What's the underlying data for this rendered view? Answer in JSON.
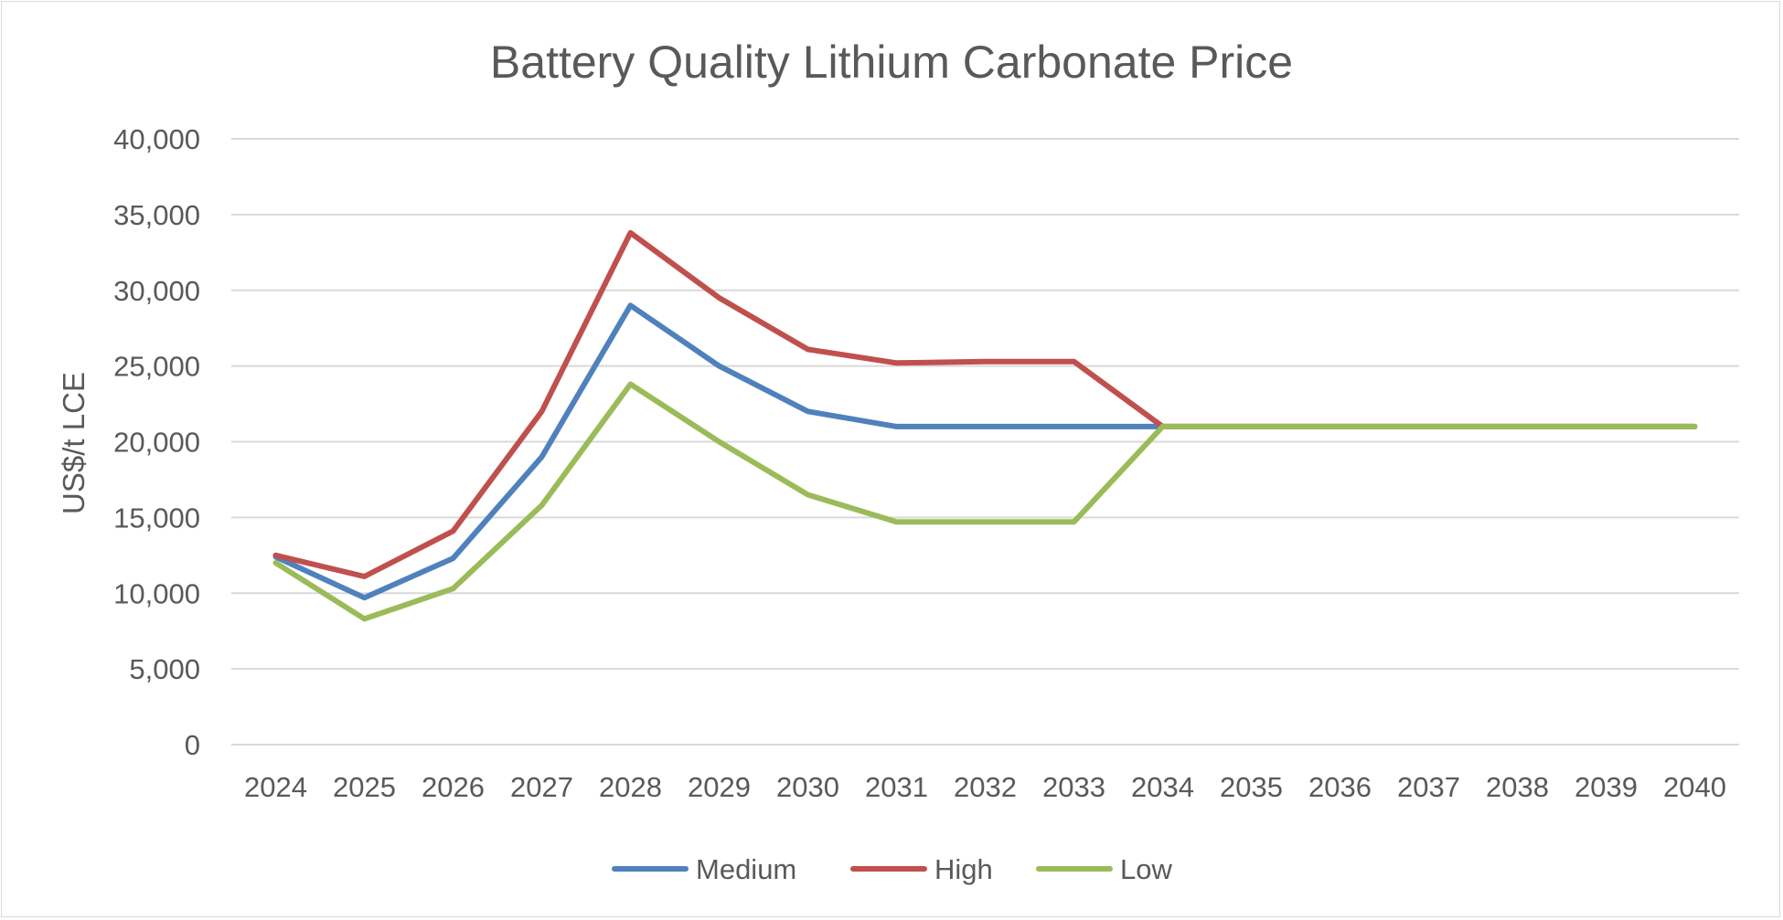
{
  "chart_data": {
    "type": "line",
    "title": "Battery Quality Lithium Carbonate Price",
    "xlabel": "",
    "ylabel": "US$/t LCE",
    "ylim": [
      0,
      40000
    ],
    "yticks": [
      0,
      5000,
      10000,
      15000,
      20000,
      25000,
      30000,
      35000,
      40000
    ],
    "ytick_labels": [
      "0",
      "5,000",
      "10,000",
      "15,000",
      "20,000",
      "25,000",
      "30,000",
      "35,000",
      "40,000"
    ],
    "categories": [
      "2024",
      "2025",
      "2026",
      "2027",
      "2028",
      "2029",
      "2030",
      "2031",
      "2032",
      "2033",
      "2034",
      "2035",
      "2036",
      "2037",
      "2038",
      "2039",
      "2040"
    ],
    "grid": "horizontal",
    "legend": "bottom",
    "series": [
      {
        "name": "Medium",
        "color": "#4f81bd",
        "values": [
          12400,
          9700,
          12300,
          19000,
          29000,
          25000,
          22000,
          21000,
          21000,
          21000,
          21000,
          21000,
          21000,
          21000,
          21000,
          21000,
          21000
        ]
      },
      {
        "name": "High",
        "color": "#c0504d",
        "values": [
          12500,
          11100,
          14100,
          22000,
          33800,
          29500,
          26100,
          25200,
          25300,
          25300,
          21000,
          21000,
          21000,
          21000,
          21000,
          21000,
          21000
        ]
      },
      {
        "name": "Low",
        "color": "#9bbb59",
        "values": [
          12000,
          8300,
          10300,
          15800,
          23800,
          20000,
          16500,
          14700,
          14700,
          14700,
          21000,
          21000,
          21000,
          21000,
          21000,
          21000,
          21000
        ]
      }
    ]
  }
}
